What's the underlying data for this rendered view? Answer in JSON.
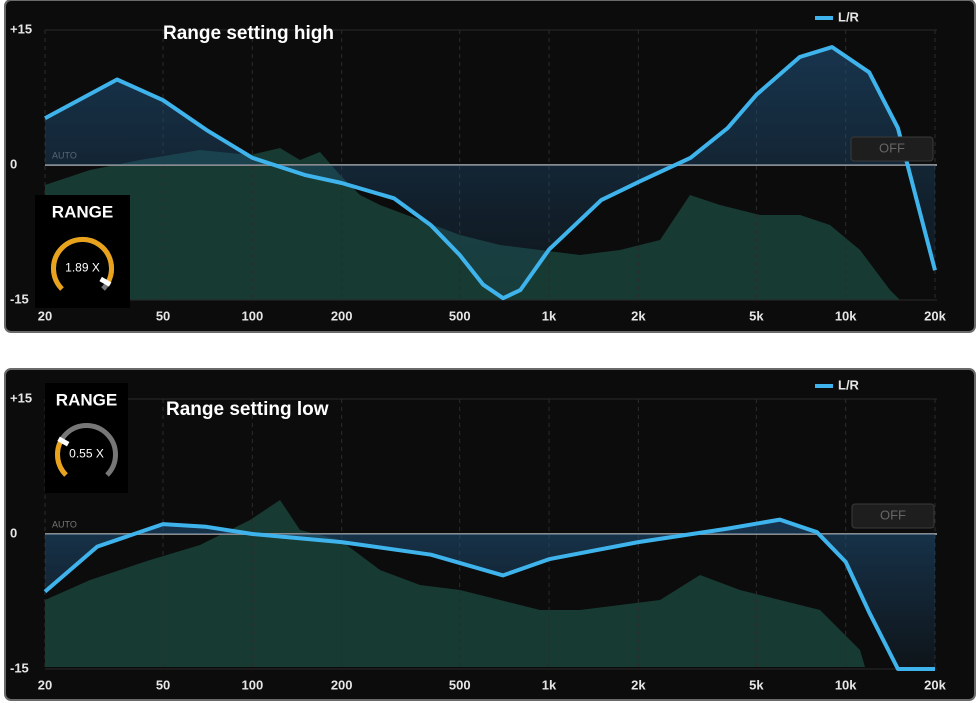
{
  "chart_data": [
    {
      "type": "line",
      "title": "Range setting high",
      "log_x": true,
      "x": [
        20,
        35,
        50,
        70,
        100,
        150,
        200,
        300,
        400,
        500,
        600,
        700,
        800,
        1000,
        1500,
        2000,
        3000,
        4000,
        5000,
        7000,
        9000,
        12000,
        15000,
        20000
      ],
      "series": [
        {
          "name": "L/R",
          "color": "#3fb4ec",
          "values": [
            5.2,
            9.5,
            7.2,
            3.9,
            0.8,
            -1.1,
            -2.0,
            -3.7,
            -6.7,
            -10,
            -13.3,
            -14.8,
            -13.9,
            -9.4,
            -3.9,
            -1.9,
            0.8,
            4.1,
            7.8,
            12,
            13.1,
            10.3,
            4.1,
            -11.7
          ]
        }
      ],
      "xlim": [
        20,
        20000
      ],
      "xticks": [
        20,
        50,
        100,
        200,
        500,
        {
          "value": 1000,
          "label": "1k"
        },
        {
          "value": 2000,
          "label": "2k"
        },
        {
          "value": 5000,
          "label": "5k"
        },
        {
          "value": 10000,
          "label": "10k"
        },
        {
          "value": 20000,
          "label": "20k"
        }
      ],
      "ylim": [
        -15,
        15
      ],
      "yticks": [
        -15,
        0,
        {
          "value": 15,
          "label": "+15"
        }
      ],
      "knob": {
        "label": "RANGE",
        "value": 1.89,
        "value_label": "1.89 X"
      },
      "auto_label": "AUTO",
      "button": "OFF"
    },
    {
      "type": "line",
      "title": "Range setting low",
      "log_x": true,
      "x": [
        20,
        30,
        50,
        70,
        100,
        200,
        400,
        700,
        1000,
        2000,
        4000,
        6000,
        8000,
        10000,
        12000,
        15000,
        20000
      ],
      "series": [
        {
          "name": "L/R",
          "color": "#3fb4ec",
          "values": [
            -6.4,
            -1.4,
            1.1,
            0.8,
            0,
            -0.9,
            -2.3,
            -4.6,
            -2.8,
            -0.9,
            0.6,
            1.6,
            0.2,
            -3.1,
            -8.7,
            -15,
            -15
          ]
        }
      ],
      "xlim": [
        20,
        20000
      ],
      "xticks": [
        20,
        50,
        100,
        200,
        500,
        {
          "value": 1000,
          "label": "1k"
        },
        {
          "value": 2000,
          "label": "2k"
        },
        {
          "value": 5000,
          "label": "5k"
        },
        {
          "value": 10000,
          "label": "10k"
        },
        {
          "value": 20000,
          "label": "20k"
        }
      ],
      "ylim": [
        -15,
        15
      ],
      "yticks": [
        -15,
        0,
        {
          "value": 15,
          "label": "+15"
        }
      ],
      "knob": {
        "label": "RANGE",
        "value": 0.55,
        "value_label": "0.55 X"
      },
      "auto_label": "AUTO",
      "button": "OFF"
    }
  ]
}
